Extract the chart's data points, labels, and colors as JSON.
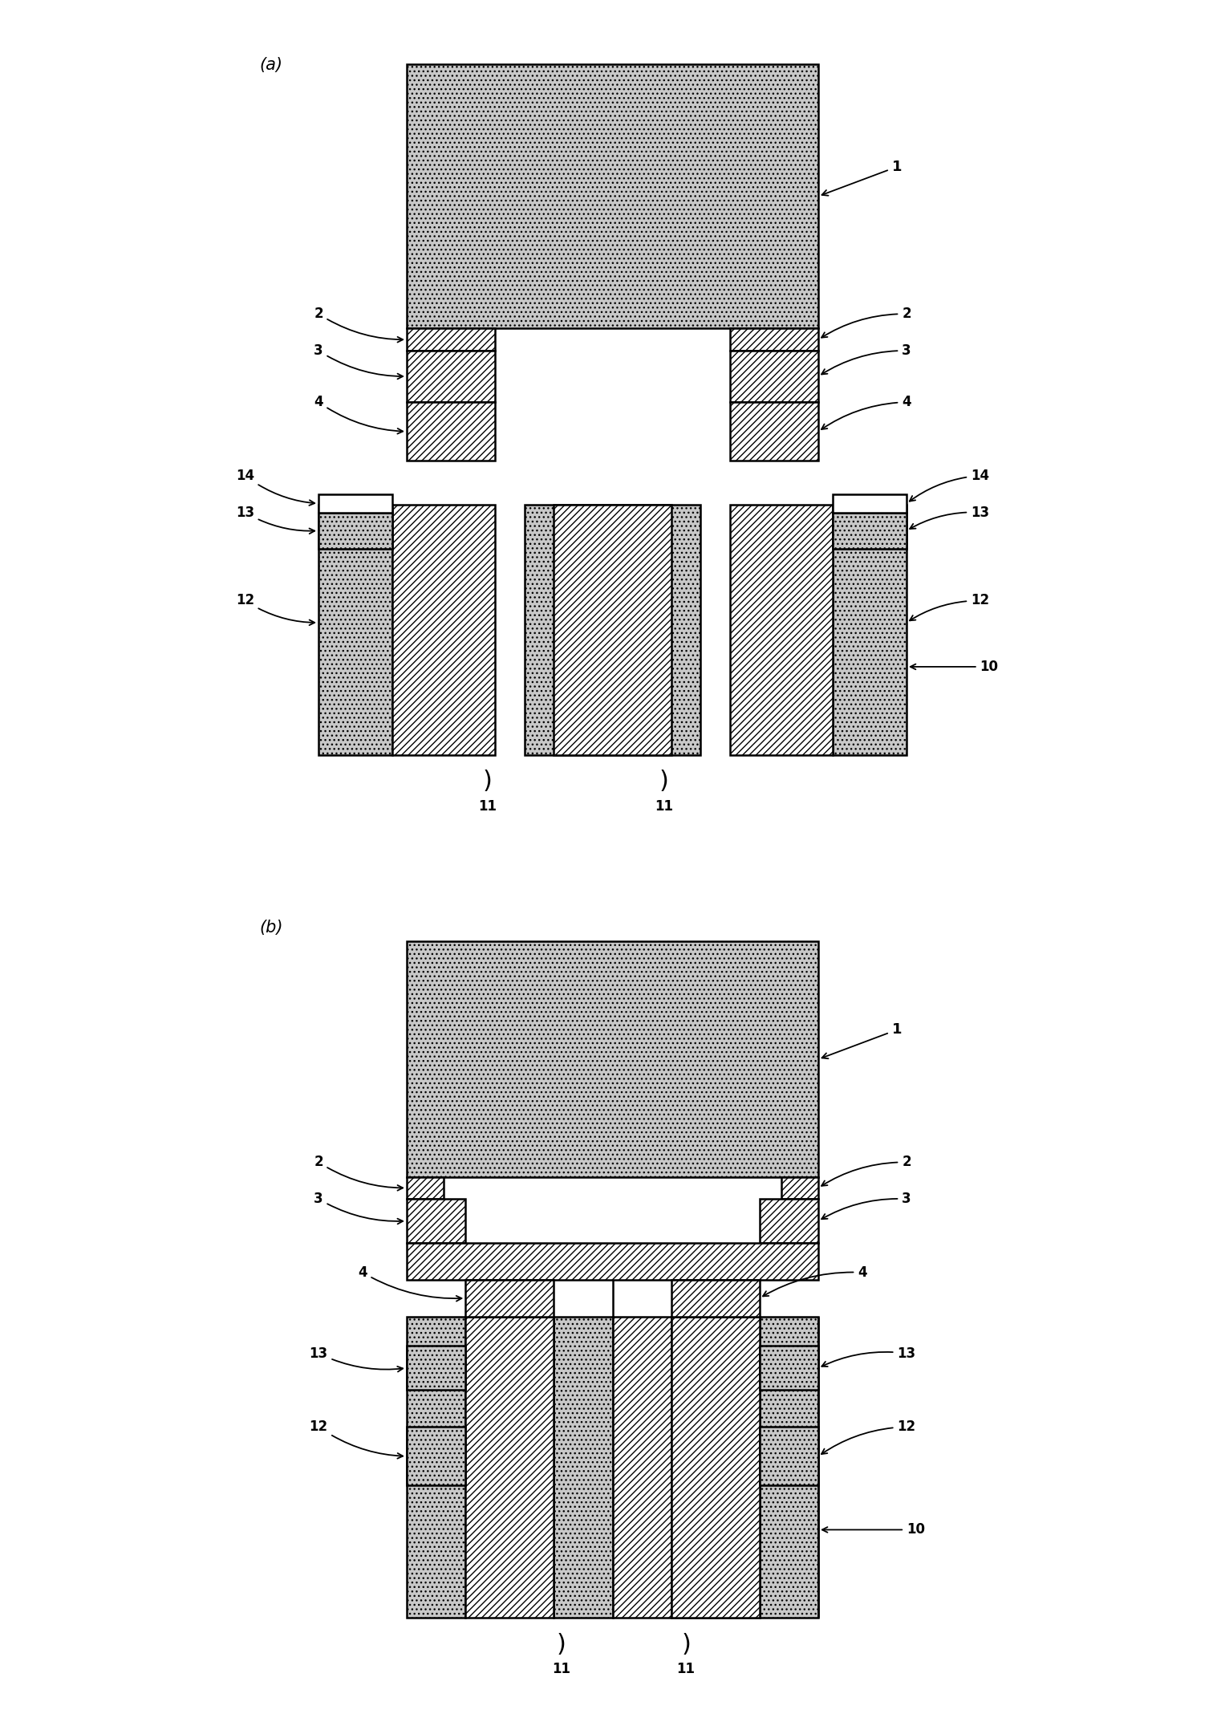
{
  "fig_width": 15.27,
  "fig_height": 21.51,
  "bg_color": "#ffffff",
  "stipple_color": "#c8c8c8",
  "hatch_color": "white",
  "lw": 1.8
}
